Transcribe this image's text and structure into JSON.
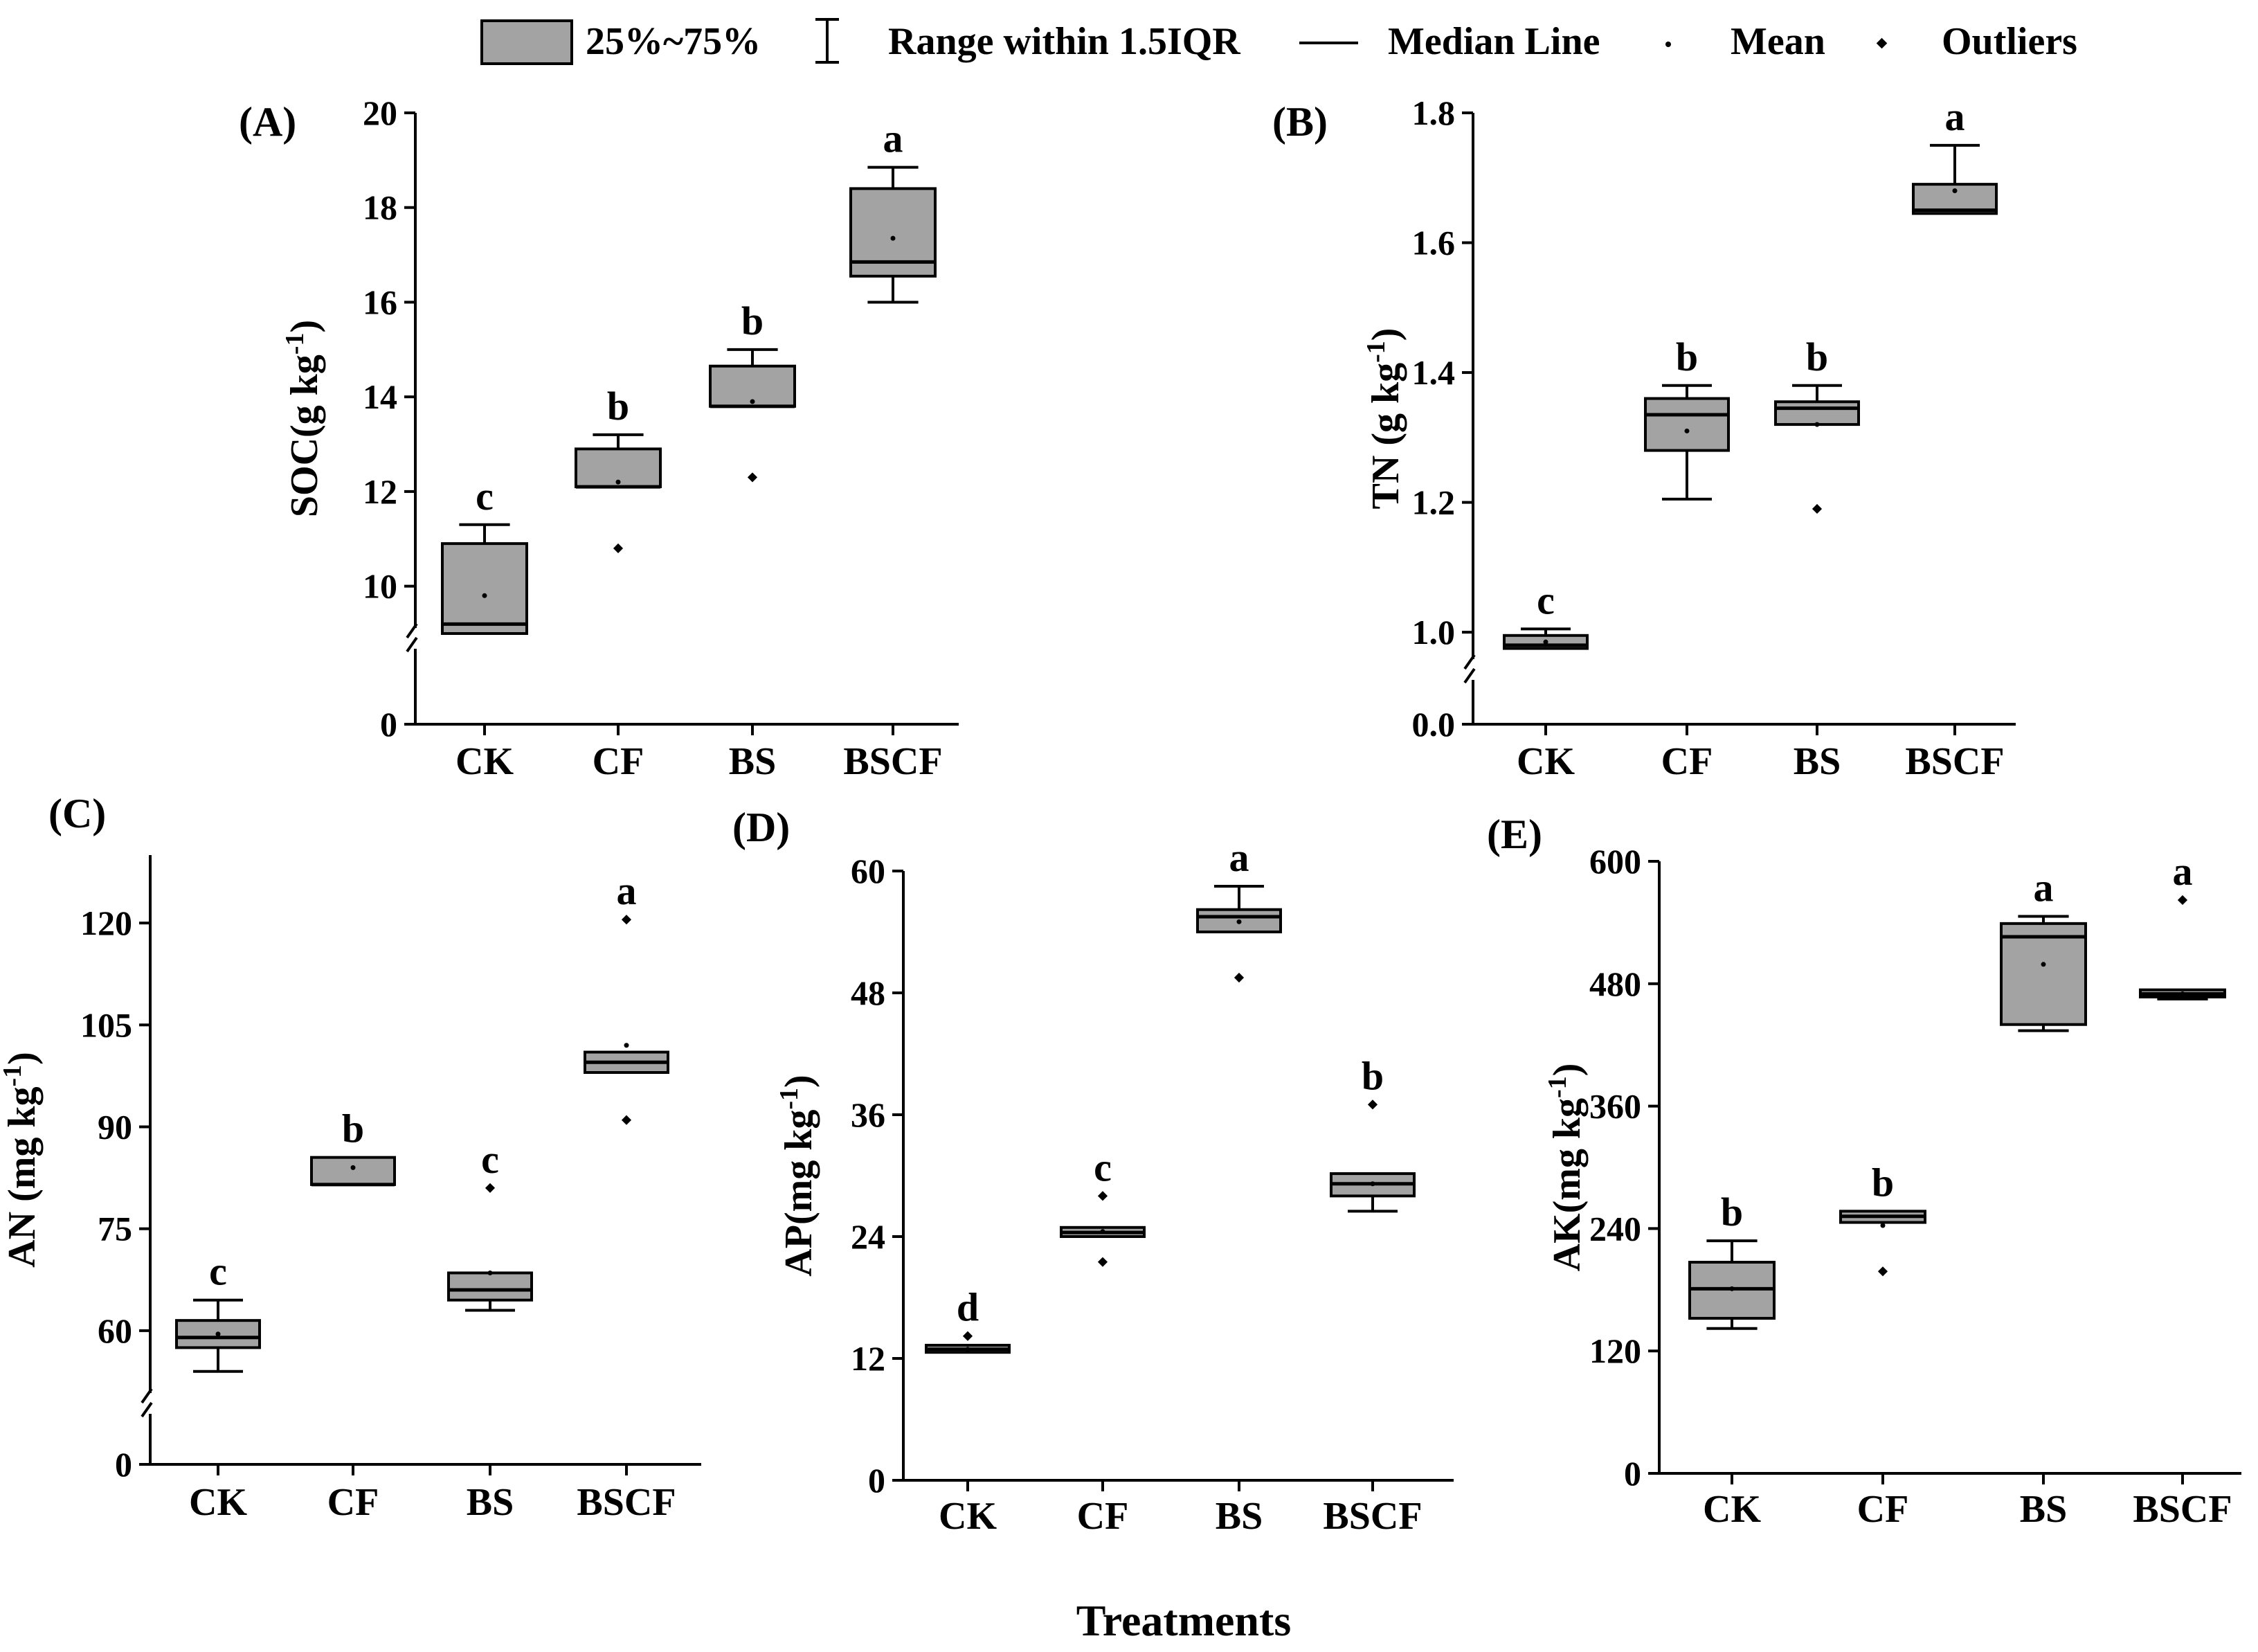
{
  "legend": {
    "box_label": "25%~75%",
    "range_label": "Range within 1.5IQR",
    "median_label": "Median Line",
    "mean_label": "Mean",
    "outliers_label": "Outliers"
  },
  "x_axis_title": "Treatments",
  "colors": {
    "box_fill": "#a3a3a3",
    "line": "#000000",
    "background": "#ffffff"
  },
  "chart_data": [
    {
      "type": "box",
      "panel": "(A)",
      "ylabel": "SOC(g kg",
      "ylabel_unit_exp": "-1",
      "ylabel_close": ")",
      "categories": [
        "CK",
        "CF",
        "BS",
        "BSCF"
      ],
      "y_axis_break": [
        0,
        9
      ],
      "yticks": [
        0,
        10,
        12,
        14,
        16,
        18,
        20
      ],
      "ytick_labels": [
        "0",
        "10",
        "12",
        "14",
        "16",
        "18",
        "20"
      ],
      "ylim": [
        9,
        20
      ],
      "boxes": [
        {
          "category": "CK",
          "whisker_low": 9.0,
          "q1": 9.0,
          "median": 9.2,
          "q3": 10.9,
          "whisker_high": 11.3,
          "mean": 9.8,
          "outliers": [],
          "letter": "c"
        },
        {
          "category": "CF",
          "whisker_low": 12.1,
          "q1": 12.1,
          "median": 12.1,
          "q3": 12.9,
          "whisker_high": 13.2,
          "mean": 12.2,
          "outliers": [
            10.8
          ],
          "letter": "b"
        },
        {
          "category": "BS",
          "whisker_low": 13.8,
          "q1": 13.8,
          "median": 13.8,
          "q3": 14.65,
          "whisker_high": 15.0,
          "mean": 13.9,
          "outliers": [
            12.3
          ],
          "letter": "b"
        },
        {
          "category": "BSCF",
          "whisker_low": 16.0,
          "q1": 16.55,
          "median": 16.85,
          "q3": 18.4,
          "whisker_high": 18.85,
          "mean": 17.35,
          "outliers": [],
          "letter": "a"
        }
      ]
    },
    {
      "type": "box",
      "panel": "(B)",
      "ylabel": "TN (g kg",
      "ylabel_unit_exp": "-1",
      "ylabel_close": ")",
      "categories": [
        "CK",
        "CF",
        "BS",
        "BSCF"
      ],
      "y_axis_break": [
        0,
        0.95
      ],
      "yticks": [
        0,
        1.0,
        1.2,
        1.4,
        1.6,
        1.8
      ],
      "ytick_labels": [
        "0.0",
        "1.0",
        "1.2",
        "1.4",
        "1.6",
        "1.8"
      ],
      "ylim": [
        0.95,
        1.8
      ],
      "boxes": [
        {
          "category": "CK",
          "whisker_low": 0.975,
          "q1": 0.975,
          "median": 0.98,
          "q3": 0.995,
          "whisker_high": 1.005,
          "mean": 0.985,
          "outliers": [],
          "letter": "c"
        },
        {
          "category": "CF",
          "whisker_low": 1.205,
          "q1": 1.28,
          "median": 1.335,
          "q3": 1.36,
          "whisker_high": 1.38,
          "mean": 1.31,
          "outliers": [],
          "letter": "b"
        },
        {
          "category": "BS",
          "whisker_low": 1.32,
          "q1": 1.32,
          "median": 1.345,
          "q3": 1.355,
          "whisker_high": 1.38,
          "mean": 1.32,
          "outliers": [
            1.19
          ],
          "letter": "b"
        },
        {
          "category": "BSCF",
          "whisker_low": 1.645,
          "q1": 1.645,
          "median": 1.65,
          "q3": 1.69,
          "whisker_high": 1.75,
          "mean": 1.68,
          "outliers": [],
          "letter": "a"
        }
      ]
    },
    {
      "type": "box",
      "panel": "(C)",
      "ylabel": "AN (mg kg",
      "ylabel_unit_exp": "-1",
      "ylabel_close": ")",
      "categories": [
        "CK",
        "CF",
        "BS",
        "BSCF"
      ],
      "y_axis_break": [
        0,
        50
      ],
      "yticks": [
        0,
        60,
        75,
        90,
        105,
        120
      ],
      "ytick_labels": [
        "0",
        "60",
        "75",
        "90",
        "105",
        "120"
      ],
      "ylim": [
        50,
        130
      ],
      "boxes": [
        {
          "category": "CK",
          "whisker_low": 54.0,
          "q1": 57.5,
          "median": 59.0,
          "q3": 61.5,
          "whisker_high": 64.5,
          "mean": 59.5,
          "outliers": [],
          "letter": "c"
        },
        {
          "category": "CF",
          "whisker_low": 81.5,
          "q1": 81.5,
          "median": 81.5,
          "q3": 85.5,
          "whisker_high": 85.5,
          "mean": 84.0,
          "outliers": [],
          "letter": "b"
        },
        {
          "category": "BS",
          "whisker_low": 63.0,
          "q1": 64.5,
          "median": 66.0,
          "q3": 68.5,
          "whisker_high": 68.5,
          "mean": 68.5,
          "outliers": [
            81.0
          ],
          "letter": "c"
        },
        {
          "category": "BSCF",
          "whisker_low": 98.0,
          "q1": 98.0,
          "median": 99.5,
          "q3": 101.0,
          "whisker_high": 101.0,
          "mean": 102.0,
          "outliers": [
            91.0,
            120.5
          ],
          "letter": "a"
        }
      ]
    },
    {
      "type": "box",
      "panel": "(D)",
      "ylabel": "AP(mg kg",
      "ylabel_unit_exp": "-1",
      "ylabel_close": ")",
      "categories": [
        "CK",
        "CF",
        "BS",
        "BSCF"
      ],
      "yticks": [
        0,
        12,
        24,
        36,
        48,
        60
      ],
      "ytick_labels": [
        "0",
        "12",
        "24",
        "36",
        "48",
        "60"
      ],
      "ylim": [
        0,
        60
      ],
      "boxes": [
        {
          "category": "CK",
          "whisker_low": 12.6,
          "q1": 12.6,
          "median": 12.9,
          "q3": 13.3,
          "whisker_high": 13.3,
          "mean": 12.9,
          "outliers": [
            14.2
          ],
          "letter": "d"
        },
        {
          "category": "CF",
          "whisker_low": 24.0,
          "q1": 24.0,
          "median": 24.4,
          "q3": 24.9,
          "whisker_high": 24.9,
          "mean": 24.5,
          "outliers": [
            21.5,
            28.0
          ],
          "letter": "c"
        },
        {
          "category": "BS",
          "whisker_low": 54.0,
          "q1": 54.0,
          "median": 55.5,
          "q3": 56.2,
          "whisker_high": 58.5,
          "mean": 55.0,
          "outliers": [
            49.5
          ],
          "letter": "a"
        },
        {
          "category": "BSCF",
          "whisker_low": 26.5,
          "q1": 28.0,
          "median": 29.2,
          "q3": 30.2,
          "whisker_high": 30.2,
          "mean": 29.2,
          "outliers": [
            37.0
          ],
          "letter": "b"
        }
      ]
    },
    {
      "type": "box",
      "panel": "(E)",
      "ylabel": "AK(mg kg",
      "ylabel_unit_exp": "-1",
      "ylabel_close": ")",
      "categories": [
        "CK",
        "CF",
        "BS",
        "BSCF"
      ],
      "yticks": [
        0,
        120,
        240,
        360,
        480,
        600
      ],
      "ytick_labels": [
        "0",
        "120",
        "240",
        "360",
        "480",
        "600"
      ],
      "ylim": [
        0,
        600
      ],
      "boxes": [
        {
          "category": "CK",
          "whisker_low": 142.0,
          "q1": 152.0,
          "median": 181.0,
          "q3": 207.0,
          "whisker_high": 228.0,
          "mean": 181.0,
          "outliers": [],
          "letter": "b"
        },
        {
          "category": "CF",
          "whisker_low": 246.0,
          "q1": 246.0,
          "median": 252.0,
          "q3": 257.0,
          "whisker_high": 257.0,
          "mean": 243.0,
          "outliers": [
            198.0
          ],
          "letter": "b"
        },
        {
          "category": "BS",
          "whisker_low": 434.0,
          "q1": 440.0,
          "median": 526.0,
          "q3": 539.0,
          "whisker_high": 546.0,
          "mean": 499.0,
          "outliers": [],
          "letter": "a"
        },
        {
          "category": "BSCF",
          "whisker_low": 465.0,
          "q1": 467.0,
          "median": 470.0,
          "q3": 474.0,
          "whisker_high": 474.0,
          "mean": 470.0,
          "outliers": [
            562.0
          ],
          "letter": "a"
        }
      ]
    }
  ]
}
